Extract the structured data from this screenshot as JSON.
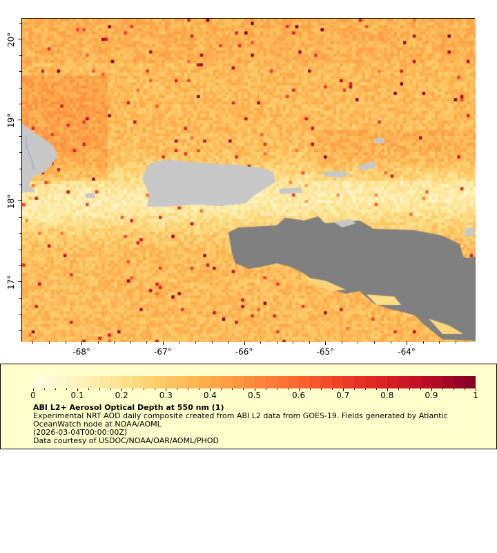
{
  "map": {
    "lon_range": [
      -68.74,
      -63.16
    ],
    "lat_range": [
      16.26,
      20.26
    ],
    "x_ticks": [
      {
        "value": -68,
        "label": "-68°"
      },
      {
        "value": -67,
        "label": "-67°"
      },
      {
        "value": -66,
        "label": "-66°"
      },
      {
        "value": -65,
        "label": "-65°"
      },
      {
        "value": -64,
        "label": "-64°"
      }
    ],
    "y_ticks": [
      {
        "value": 17,
        "label": "17°"
      },
      {
        "value": 18,
        "label": "18°"
      },
      {
        "value": 19,
        "label": "19°"
      },
      {
        "value": 20,
        "label": "20°"
      }
    ],
    "land_color": "#c8c8c8",
    "no_data_color": "#808080",
    "river_color": "#7aa8d0"
  },
  "legend": {
    "colorbar_range": [
      0,
      1
    ],
    "colorbar_labels": [
      "0",
      "0.1",
      "0.2",
      "0.3",
      "0.4",
      "0.5",
      "0.6",
      "0.7",
      "0.8",
      "0.9",
      "1"
    ],
    "colormap": [
      "#ffffe6",
      "#fff3bf",
      "#fee28e",
      "#fec864",
      "#fda94a",
      "#fc8a3c",
      "#fb6530",
      "#f03c26",
      "#d91e22",
      "#b80b26",
      "#800026"
    ],
    "background": "#ffffcc",
    "title": "ABI L2+ Aerosol Optical Depth at 550 nm (1)",
    "line1": "Experimental NRT AOD daily composite created from ABI L2 data from GOES-19. Fields generated by Atlantic",
    "line2": "OceanWatch node at NOAA/AOML",
    "line3": "(2026-03-04T00:00:00Z)",
    "line4": "Data courtesy of USDOC/NOAA/OAR/AOML/PHOD"
  }
}
